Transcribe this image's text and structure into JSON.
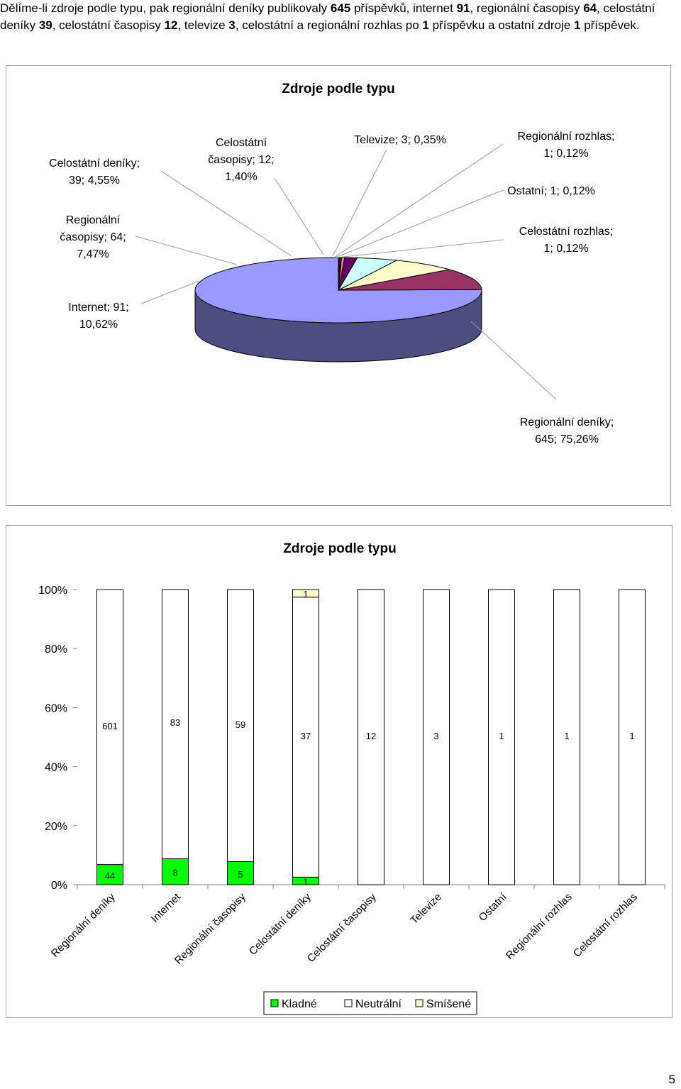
{
  "intro": {
    "t1": "Dělíme-li zdroje podle typu, pak regionální deníky publikovaly ",
    "v1": "645",
    "t2": " příspěvků, internet ",
    "v2": "91",
    "t3": ", regionální časopisy ",
    "v3": "64",
    "t4": ", celostátní deníky ",
    "v4": "39",
    "t5": ", celostátní časopisy ",
    "v5": "12",
    "t6": ", televize ",
    "v6": "3",
    "t7": ", celostátní a regionální rozhlas po ",
    "v7": "1",
    "t8": " příspěvku a ostatní zdroje ",
    "v8": "1",
    "t9": " příspěvek."
  },
  "page_number": "5",
  "chart_data": [
    {
      "type": "pie",
      "title": "Zdroje podle typu",
      "slices": [
        {
          "name": "Regionální deníky",
          "value": 645,
          "percent": "75,26%",
          "label": "Regionální deníky; 645; 75,26%",
          "color": "#9999ff"
        },
        {
          "name": "Internet",
          "value": 91,
          "percent": "10,62%",
          "label": "Internet; 91; 10,62%",
          "color": "#993366"
        },
        {
          "name": "Regionální časopisy",
          "value": 64,
          "percent": "7,47%",
          "label": "Regionální časopisy; 64; 7,47%",
          "color": "#ffffcc"
        },
        {
          "name": "Celostátní deníky",
          "value": 39,
          "percent": "4,55%",
          "label": "Celostátní deníky; 39; 4,55%",
          "color": "#ccffff"
        },
        {
          "name": "Celostátní časopisy",
          "value": 12,
          "percent": "1,40%",
          "label": "Celostátní časopisy; 12; 1,40%",
          "color": "#660066"
        },
        {
          "name": "Televize",
          "value": 3,
          "percent": "0,35%",
          "label": "Televize; 3; 0,35%",
          "color": "#ff8080"
        },
        {
          "name": "Regionální rozhlas",
          "value": 1,
          "percent": "0,12%",
          "label": "Regionální rozhlas; 1; 0,12%",
          "color": "#0066cc"
        },
        {
          "name": "Ostatní",
          "value": 1,
          "percent": "0,12%",
          "label": "Ostatní; 1; 0,12%",
          "color": "#ccccff"
        },
        {
          "name": "Celostátní rozhlas",
          "value": 1,
          "percent": "0,12%",
          "label": "Celostátní rozhlas; 1; 0,12%",
          "color": "#000080"
        }
      ]
    },
    {
      "type": "bar",
      "stacked": "percent",
      "title": "Zdroje podle typu",
      "categories": [
        "Regionální deníky",
        "Internet",
        "Regionální časopisy",
        "Celostátní deníky",
        "Celostátní časopisy",
        "Televize",
        "Ostatní",
        "Regionální rozhlas",
        "Celostátní rozhlas"
      ],
      "series": [
        {
          "name": "Kladné",
          "color": "#00ff00",
          "values": [
            44,
            8,
            5,
            1,
            0,
            0,
            0,
            0,
            0
          ]
        },
        {
          "name": "Neutrální",
          "color": "#ffffff",
          "values": [
            601,
            83,
            59,
            37,
            12,
            3,
            1,
            1,
            1
          ]
        },
        {
          "name": "Smíšené",
          "color": "#ffffcc",
          "values": [
            0,
            0,
            0,
            1,
            0,
            0,
            0,
            0,
            0
          ]
        }
      ],
      "yticks": [
        "0%",
        "20%",
        "40%",
        "60%",
        "80%",
        "100%"
      ],
      "ylim": [
        0,
        100
      ],
      "legend": "bottom"
    }
  ]
}
